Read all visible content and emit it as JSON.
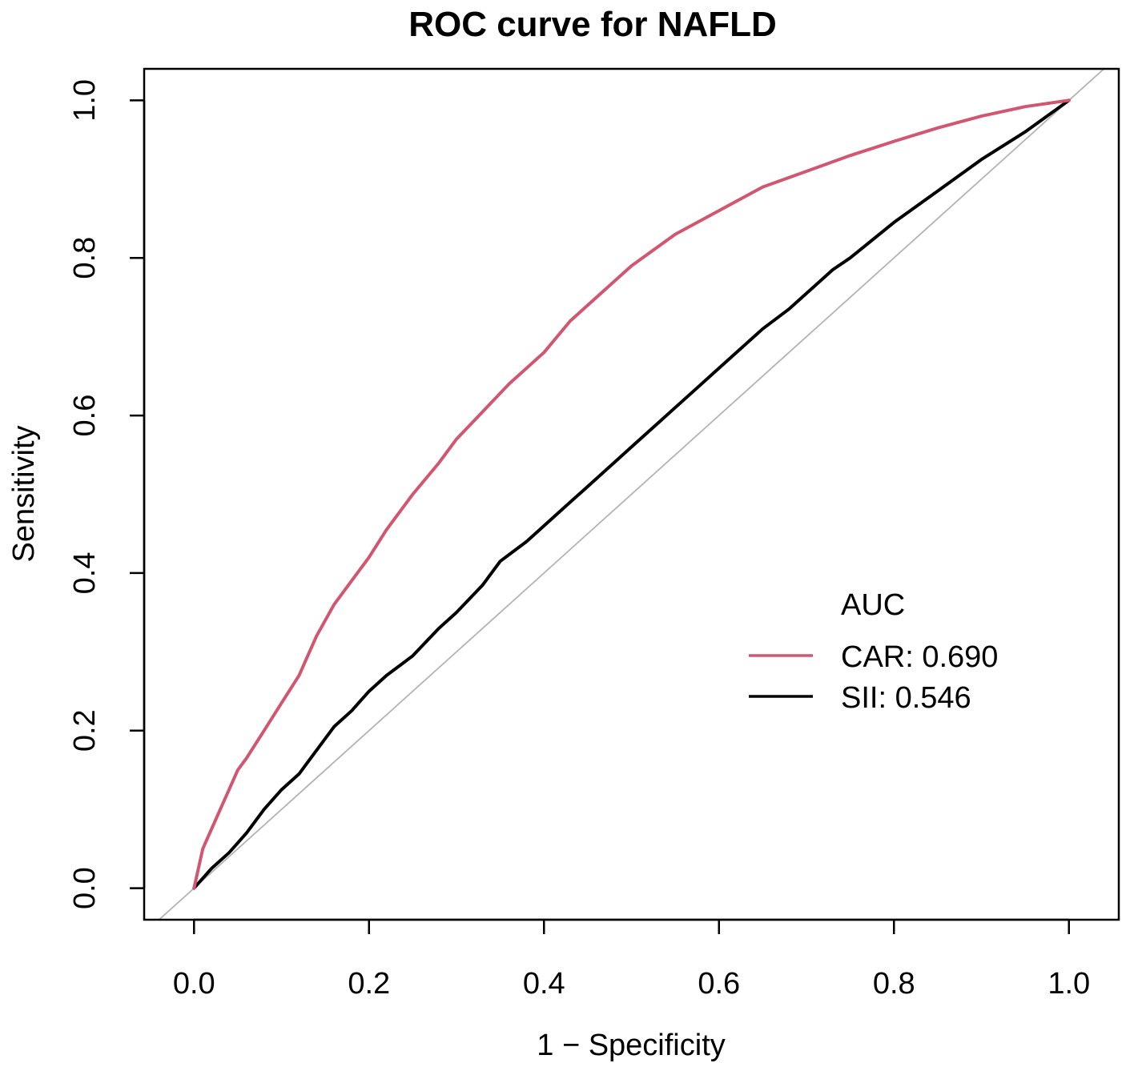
{
  "chart_data": {
    "type": "line",
    "title": "ROC curve for NAFLD",
    "xlabel": "1 − Specificity",
    "ylabel": "Sensitivity",
    "xlim": [
      -0.057,
      1.057
    ],
    "ylim": [
      -0.04,
      1.04
    ],
    "x_ticks": [
      0.0,
      0.2,
      0.4,
      0.6,
      0.8,
      1.0
    ],
    "x_tick_labels": [
      "0.0",
      "0.2",
      "0.4",
      "0.6",
      "0.8",
      "1.0"
    ],
    "y_ticks": [
      0.0,
      0.2,
      0.4,
      0.6,
      0.8,
      1.0
    ],
    "y_tick_labels": [
      "0.0",
      "0.2",
      "0.4",
      "0.6",
      "0.8",
      "1.0"
    ],
    "grid": false,
    "legend": {
      "title": "AUC",
      "position": "bottom-right",
      "entries": [
        "CAR: 0.690",
        "SII: 0.546"
      ]
    },
    "reference_line": {
      "name": "chance diagonal",
      "x": [
        -0.057,
        1.057
      ],
      "y": [
        -0.057,
        1.057
      ],
      "color": "#b3b3b3"
    },
    "series": [
      {
        "name": "CAR",
        "auc": 0.69,
        "color": "#d1566f",
        "x": [
          0.0,
          0.01,
          0.02,
          0.03,
          0.04,
          0.05,
          0.06,
          0.08,
          0.1,
          0.12,
          0.14,
          0.16,
          0.18,
          0.2,
          0.22,
          0.25,
          0.28,
          0.3,
          0.33,
          0.36,
          0.4,
          0.43,
          0.47,
          0.5,
          0.55,
          0.6,
          0.65,
          0.7,
          0.75,
          0.8,
          0.85,
          0.9,
          0.95,
          1.0
        ],
        "y": [
          0.0,
          0.05,
          0.075,
          0.1,
          0.125,
          0.15,
          0.165,
          0.2,
          0.235,
          0.27,
          0.32,
          0.36,
          0.39,
          0.42,
          0.455,
          0.5,
          0.54,
          0.57,
          0.605,
          0.64,
          0.68,
          0.72,
          0.76,
          0.79,
          0.83,
          0.86,
          0.89,
          0.91,
          0.93,
          0.948,
          0.965,
          0.98,
          0.992,
          1.0
        ]
      },
      {
        "name": "SII",
        "auc": 0.546,
        "color": "#000000",
        "x": [
          0.0,
          0.02,
          0.04,
          0.06,
          0.08,
          0.1,
          0.12,
          0.14,
          0.16,
          0.18,
          0.2,
          0.22,
          0.25,
          0.28,
          0.3,
          0.33,
          0.35,
          0.38,
          0.4,
          0.43,
          0.45,
          0.48,
          0.5,
          0.53,
          0.55,
          0.58,
          0.6,
          0.63,
          0.65,
          0.68,
          0.7,
          0.73,
          0.75,
          0.8,
          0.85,
          0.9,
          0.95,
          1.0
        ],
        "y": [
          0.0,
          0.025,
          0.045,
          0.07,
          0.1,
          0.125,
          0.145,
          0.175,
          0.205,
          0.225,
          0.25,
          0.27,
          0.295,
          0.33,
          0.35,
          0.385,
          0.415,
          0.44,
          0.46,
          0.49,
          0.51,
          0.54,
          0.56,
          0.59,
          0.61,
          0.64,
          0.66,
          0.69,
          0.71,
          0.735,
          0.755,
          0.785,
          0.8,
          0.845,
          0.885,
          0.925,
          0.96,
          1.0
        ]
      }
    ]
  }
}
